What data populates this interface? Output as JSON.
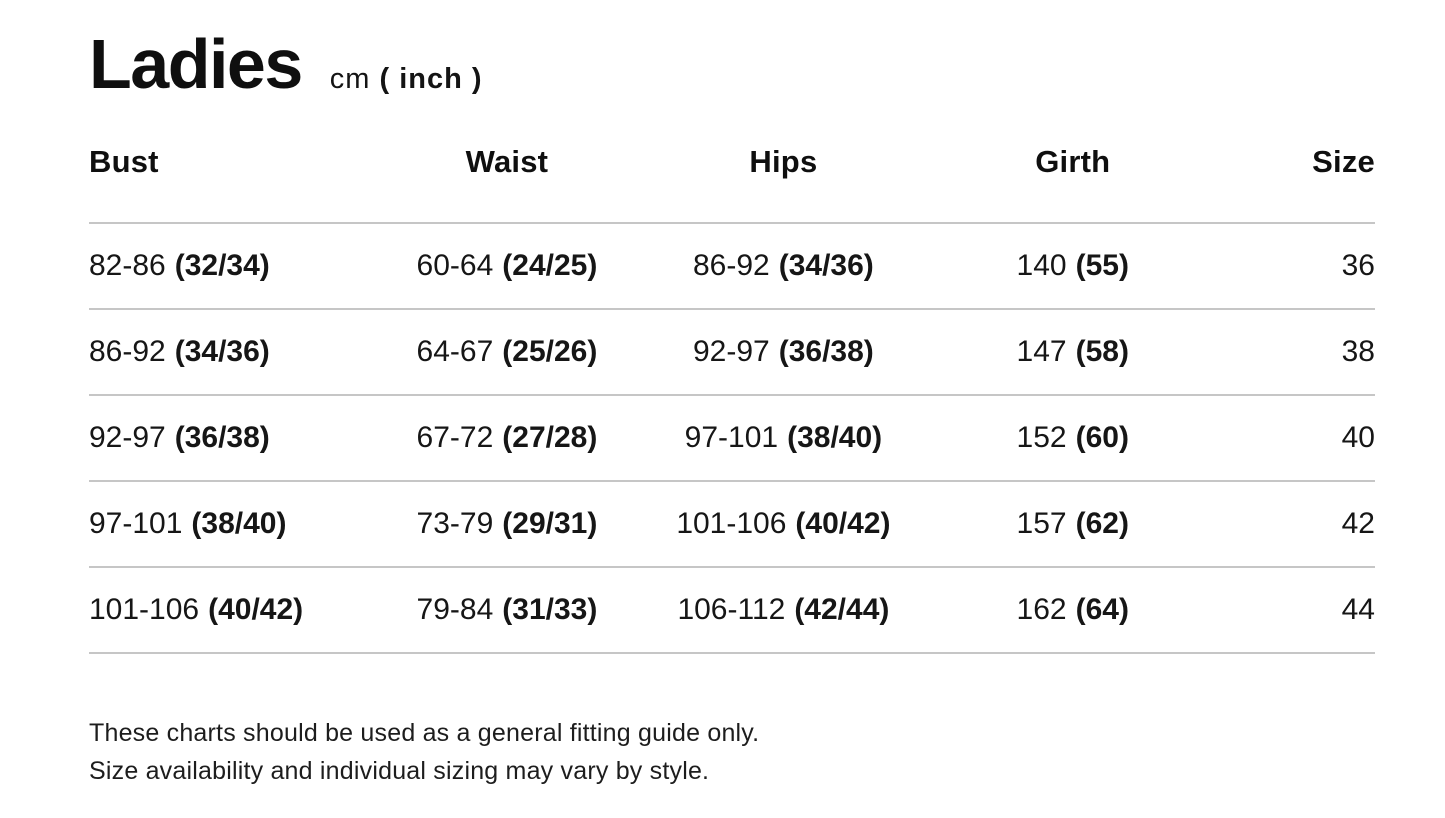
{
  "title": {
    "text": "Ladies",
    "unit_normal": "cm",
    "unit_bold": "( inch )"
  },
  "table": {
    "columns": [
      {
        "label": "Bust"
      },
      {
        "label": "Waist"
      },
      {
        "label": "Hips"
      },
      {
        "label": "Girth"
      },
      {
        "label": "Size"
      }
    ],
    "rows": [
      {
        "bust": {
          "cm": "82-86",
          "inch": "(32/34)"
        },
        "waist": {
          "cm": "60-64",
          "inch": "(24/25)"
        },
        "hips": {
          "cm": "86-92",
          "inch": "(34/36)"
        },
        "girth": {
          "cm": "140",
          "inch": "(55)"
        },
        "size": "36"
      },
      {
        "bust": {
          "cm": "86-92",
          "inch": "(34/36)"
        },
        "waist": {
          "cm": "64-67",
          "inch": "(25/26)"
        },
        "hips": {
          "cm": "92-97",
          "inch": "(36/38)"
        },
        "girth": {
          "cm": "147",
          "inch": "(58)"
        },
        "size": "38"
      },
      {
        "bust": {
          "cm": "92-97",
          "inch": "(36/38)"
        },
        "waist": {
          "cm": "67-72",
          "inch": "(27/28)"
        },
        "hips": {
          "cm": "97-101",
          "inch": "(38/40)"
        },
        "girth": {
          "cm": "152",
          "inch": "(60)"
        },
        "size": "40"
      },
      {
        "bust": {
          "cm": "97-101",
          "inch": "(38/40)"
        },
        "waist": {
          "cm": "73-79",
          "inch": "(29/31)"
        },
        "hips": {
          "cm": "101-106",
          "inch": "(40/42)"
        },
        "girth": {
          "cm": "157",
          "inch": "(62)"
        },
        "size": "42"
      },
      {
        "bust": {
          "cm": "101-106",
          "inch": "(40/42)"
        },
        "waist": {
          "cm": "79-84",
          "inch": "(31/33)"
        },
        "hips": {
          "cm": "106-112",
          "inch": "(42/44)"
        },
        "girth": {
          "cm": "162",
          "inch": "(64)"
        },
        "size": "44"
      }
    ]
  },
  "note": {
    "line1": "These charts should be used as a general fitting guide only.",
    "line2": "Size availability and individual sizing may vary by style."
  },
  "colors": {
    "background": "#ffffff",
    "text": "#131313",
    "divider": "#c6c6c6"
  }
}
